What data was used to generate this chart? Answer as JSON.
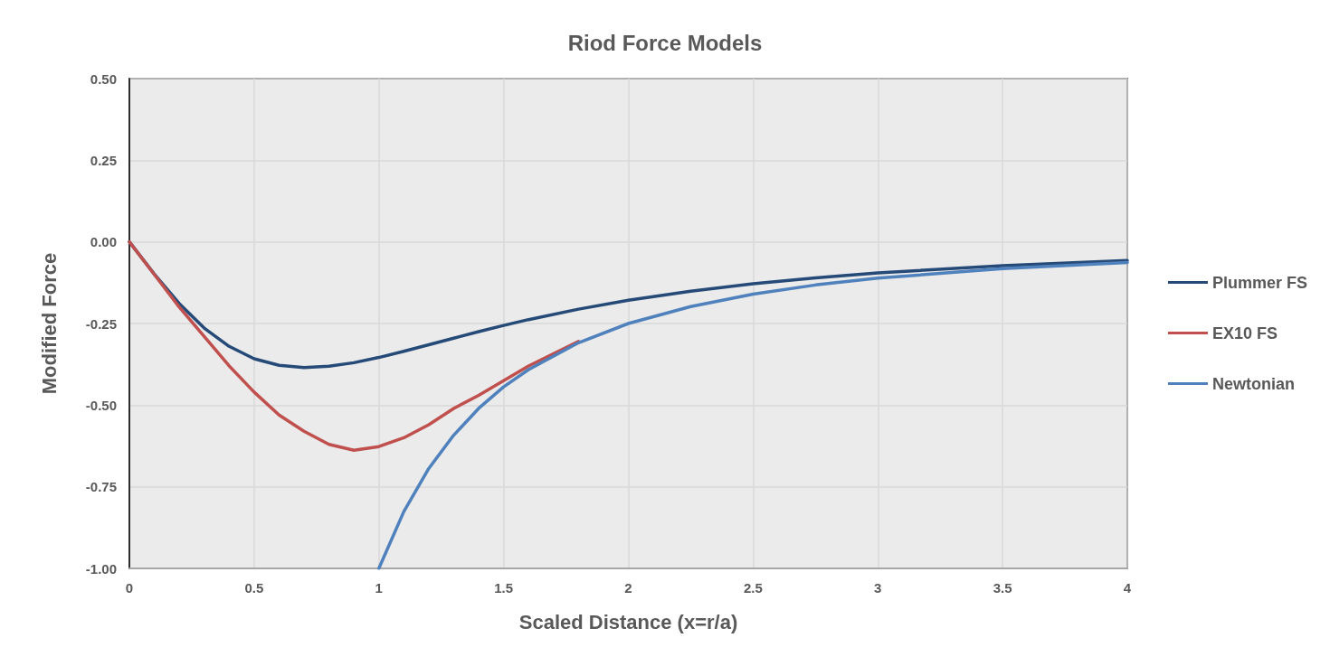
{
  "chart_data": {
    "type": "line",
    "title": "Riod Force Models",
    "xlabel": "Scaled Distance (x=r/a)",
    "ylabel": "Modified Force",
    "xlim": [
      0,
      4
    ],
    "xticks": [
      0,
      0.5,
      1,
      1.5,
      2,
      2.5,
      3,
      3.5,
      4
    ],
    "ylim": [
      -1,
      0.5
    ],
    "yticks": [
      {
        "value": -1,
        "label": "-1.00"
      },
      {
        "value": -0.75,
        "label": "-0.75"
      },
      {
        "value": -0.5,
        "label": "-0.50"
      },
      {
        "value": -0.25,
        "label": "-0.25"
      },
      {
        "value": 0,
        "label": "0.00"
      },
      {
        "value": 0.25,
        "label": "0.25"
      },
      {
        "value": 0.5,
        "label": "0.50"
      }
    ],
    "grid": true,
    "legend": "right",
    "marker": "none",
    "line_style": "solid",
    "series": [
      {
        "name": "Plummer FS",
        "color": "#264a78",
        "x": [
          0,
          0.1,
          0.2,
          0.3,
          0.4,
          0.5,
          0.6,
          0.7,
          0.8,
          0.9,
          1.0,
          1.1,
          1.2,
          1.3,
          1.4,
          1.5,
          1.6,
          1.8,
          2.0,
          2.25,
          2.5,
          2.75,
          3.0,
          3.5,
          4.0
        ],
        "values": [
          0,
          -0.099,
          -0.189,
          -0.264,
          -0.32,
          -0.358,
          -0.378,
          -0.385,
          -0.381,
          -0.37,
          -0.354,
          -0.335,
          -0.315,
          -0.295,
          -0.275,
          -0.256,
          -0.238,
          -0.206,
          -0.179,
          -0.151,
          -0.128,
          -0.11,
          -0.095,
          -0.073,
          -0.057
        ]
      },
      {
        "name": "EX10 FS",
        "color": "#c0504d",
        "x": [
          0,
          0.1,
          0.2,
          0.3,
          0.4,
          0.5,
          0.6,
          0.7,
          0.8,
          0.9,
          1.0,
          1.1,
          1.2,
          1.3,
          1.4,
          1.5,
          1.6,
          1.8
        ],
        "values": [
          0,
          -0.1,
          -0.2,
          -0.29,
          -0.38,
          -0.46,
          -0.53,
          -0.58,
          -0.62,
          -0.638,
          -0.627,
          -0.6,
          -0.56,
          -0.51,
          -0.47,
          -0.425,
          -0.38,
          -0.305
        ]
      },
      {
        "name": "Newtonian",
        "color": "#4f81bd",
        "x": [
          1.0,
          1.1,
          1.2,
          1.3,
          1.4,
          1.5,
          1.6,
          1.8,
          2.0,
          2.25,
          2.5,
          2.75,
          3.0,
          3.5,
          4.0
        ],
        "values": [
          -1,
          -0.826,
          -0.694,
          -0.592,
          -0.51,
          -0.444,
          -0.391,
          -0.309,
          -0.25,
          -0.198,
          -0.16,
          -0.132,
          -0.111,
          -0.082,
          -0.063
        ]
      }
    ]
  }
}
